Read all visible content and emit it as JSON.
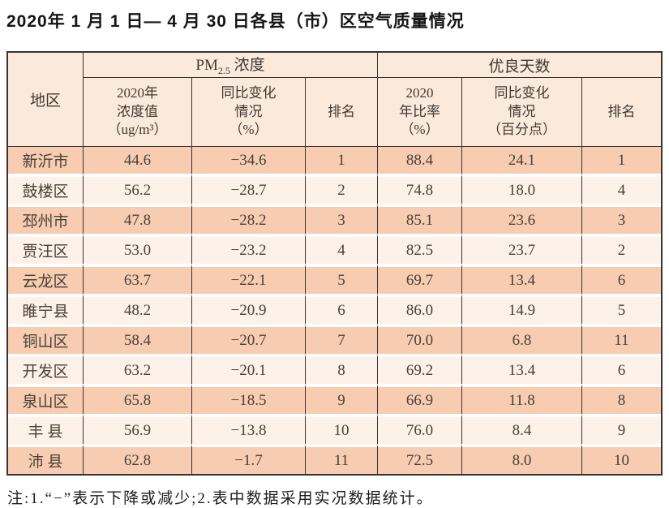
{
  "title": "2020年 1 月 1 日— 4 月 30 日各县（市）区空气质量情况",
  "footnote": "注:1.“−”表示下降或减少;2.表中数据采用实况数据统计。",
  "colors": {
    "row_odd": "#f8ccb1",
    "row_even": "#fdf2ea",
    "header_bg": "#fbe9dc",
    "border": "#39332f",
    "text": "#474138",
    "title": "#151515"
  },
  "chart_data": {
    "type": "table",
    "title": "2020年 1 月 1 日— 4 月 30 日各县（市）区空气质量情况",
    "footnote": "注:1.“−”表示下降或减少;2.表中数据采用实况数据统计。",
    "header": {
      "region": "地区",
      "pm_prefix": "PM",
      "pm_sub": "2.5",
      "pm_suffix": " 浓度",
      "good_group": "优良天数",
      "pm_value": "2020年\n浓度值\n（ug/m³）",
      "pm_change": "同比变化\n情况\n（%）",
      "pm_rank": "排名",
      "good_rate": "2020\n年比率\n（%）",
      "good_change": "同比变化\n情况\n（百分点）",
      "good_rank": "排名"
    },
    "columns": [
      "region",
      "pm_value",
      "pm_change",
      "pm_rank",
      "good_rate",
      "good_change",
      "good_rank"
    ],
    "rows": [
      {
        "region": "新沂市",
        "pm_value": "44.6",
        "pm_change": "−34.6",
        "pm_rank": "1",
        "good_rate": "88.4",
        "good_change": "24.1",
        "good_rank": "1"
      },
      {
        "region": "鼓楼区",
        "pm_value": "56.2",
        "pm_change": "−28.7",
        "pm_rank": "2",
        "good_rate": "74.8",
        "good_change": "18.0",
        "good_rank": "4"
      },
      {
        "region": "邳州市",
        "pm_value": "47.8",
        "pm_change": "−28.2",
        "pm_rank": "3",
        "good_rate": "85.1",
        "good_change": "23.6",
        "good_rank": "3"
      },
      {
        "region": "贾汪区",
        "pm_value": "53.0",
        "pm_change": "−23.2",
        "pm_rank": "4",
        "good_rate": "82.5",
        "good_change": "23.7",
        "good_rank": "2"
      },
      {
        "region": "云龙区",
        "pm_value": "63.7",
        "pm_change": "−22.1",
        "pm_rank": "5",
        "good_rate": "69.7",
        "good_change": "13.4",
        "good_rank": "6"
      },
      {
        "region": "睢宁县",
        "pm_value": "48.2",
        "pm_change": "−20.9",
        "pm_rank": "6",
        "good_rate": "86.0",
        "good_change": "14.9",
        "good_rank": "5"
      },
      {
        "region": "铜山区",
        "pm_value": "58.4",
        "pm_change": "−20.7",
        "pm_rank": "7",
        "good_rate": "70.0",
        "good_change": "6.8",
        "good_rank": "11"
      },
      {
        "region": "开发区",
        "pm_value": "63.2",
        "pm_change": "−20.1",
        "pm_rank": "8",
        "good_rate": "69.2",
        "good_change": "13.4",
        "good_rank": "6"
      },
      {
        "region": "泉山区",
        "pm_value": "65.8",
        "pm_change": "−18.5",
        "pm_rank": "9",
        "good_rate": "66.9",
        "good_change": "11.8",
        "good_rank": "8"
      },
      {
        "region": "丰 县",
        "pm_value": "56.9",
        "pm_change": "−13.8",
        "pm_rank": "10",
        "good_rate": "76.0",
        "good_change": "8.4",
        "good_rank": "9"
      },
      {
        "region": "沛 县",
        "pm_value": "62.8",
        "pm_change": "−1.7",
        "pm_rank": "11",
        "good_rate": "72.5",
        "good_change": "8.0",
        "good_rank": "10"
      }
    ]
  }
}
